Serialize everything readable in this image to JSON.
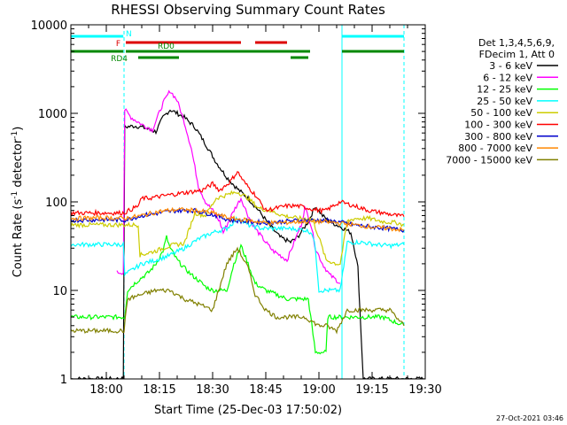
{
  "chart_data": {
    "type": "line",
    "title": "RHESSI Observing Summary Count Rates",
    "xlabel": "Start Time (25-Dec-03 17:50:02)",
    "ylabel_main": "Count Rate (s",
    "ylabel_sup1": "-1",
    "ylabel_mid": " detector",
    "ylabel_sup2": "-1",
    "ylabel_end": ")",
    "x_start_minutes": 0,
    "x_end_minutes": 100,
    "x_tick_minutes": [
      10,
      25,
      40,
      55,
      70,
      85,
      100
    ],
    "x_tick_labels": [
      "18:00",
      "18:15",
      "18:30",
      "18:45",
      "19:00",
      "19:15",
      "19:30"
    ],
    "y_scale": "log",
    "ylim": [
      1,
      10000
    ],
    "y_ticks": [
      1,
      10,
      100,
      1000,
      10000
    ],
    "y_tick_labels": [
      "1",
      "10",
      "100",
      "1000",
      "10000"
    ],
    "grid": false,
    "legend_position": "top-right",
    "legend_header": [
      "Det 1,3,4,5,6,9,",
      "FDecim 1, Att 0"
    ],
    "series": [
      {
        "name": "3 - 6 keV",
        "color": "#000000",
        "points": [
          [
            0,
            1
          ],
          [
            14.8,
            1
          ],
          [
            15.2,
            700
          ],
          [
            18,
            720
          ],
          [
            20,
            700
          ],
          [
            22,
            660
          ],
          [
            24,
            620
          ],
          [
            26,
            900
          ],
          [
            28,
            1100
          ],
          [
            30,
            1000
          ],
          [
            32,
            900
          ],
          [
            35,
            700
          ],
          [
            38,
            450
          ],
          [
            41,
            280
          ],
          [
            44,
            190
          ],
          [
            47,
            140
          ],
          [
            50,
            110
          ],
          [
            53,
            80
          ],
          [
            56,
            55
          ],
          [
            59,
            40
          ],
          [
            62,
            35
          ],
          [
            64,
            40
          ],
          [
            67,
            60
          ],
          [
            69,
            90
          ],
          [
            71,
            70
          ],
          [
            73,
            60
          ],
          [
            75,
            55
          ],
          [
            77,
            50
          ],
          [
            79,
            45
          ],
          [
            80,
            30
          ],
          [
            81,
            18
          ],
          [
            82.5,
            1
          ],
          [
            100,
            1
          ]
        ]
      },
      {
        "name": "6 - 12 keV",
        "color": "#ff00ff",
        "points": [
          [
            13,
            16
          ],
          [
            14.8,
            16
          ],
          [
            15.2,
            1100
          ],
          [
            17,
            900
          ],
          [
            20,
            750
          ],
          [
            23,
            650
          ],
          [
            26,
            1300
          ],
          [
            28,
            1800
          ],
          [
            30,
            1400
          ],
          [
            32,
            800
          ],
          [
            34,
            400
          ],
          [
            36,
            150
          ],
          [
            38,
            100
          ],
          [
            40,
            80
          ],
          [
            42,
            60
          ],
          [
            43,
            45
          ],
          [
            46,
            80
          ],
          [
            48,
            110
          ],
          [
            50,
            70
          ],
          [
            52,
            50
          ],
          [
            55,
            35
          ],
          [
            57,
            28
          ],
          [
            59,
            25
          ],
          [
            61,
            22
          ],
          [
            63,
            35
          ],
          [
            65,
            55
          ],
          [
            66,
            85
          ],
          [
            67,
            70
          ],
          [
            68,
            50
          ],
          [
            69,
            30
          ],
          [
            71,
            20
          ],
          [
            73,
            15
          ],
          [
            75,
            13
          ],
          [
            76,
            12
          ]
        ]
      },
      {
        "name": "12 - 25 keV",
        "color": "#00ff00",
        "points": [
          [
            0,
            5
          ],
          [
            14,
            5
          ],
          [
            15.2,
            5
          ],
          [
            16,
            10
          ],
          [
            18,
            12
          ],
          [
            20,
            14
          ],
          [
            22,
            16
          ],
          [
            24,
            20
          ],
          [
            26,
            28
          ],
          [
            27,
            40
          ],
          [
            28,
            30
          ],
          [
            30,
            22
          ],
          [
            32,
            18
          ],
          [
            34,
            15
          ],
          [
            36,
            13
          ],
          [
            38,
            11
          ],
          [
            40,
            10
          ],
          [
            42,
            10
          ],
          [
            44,
            10
          ],
          [
            46,
            20
          ],
          [
            48,
            32
          ],
          [
            50,
            20
          ],
          [
            52,
            12
          ],
          [
            55,
            10
          ],
          [
            58,
            9
          ],
          [
            61,
            8
          ],
          [
            64,
            8
          ],
          [
            67,
            8
          ],
          [
            69,
            2
          ],
          [
            72,
            2
          ],
          [
            72.5,
            5
          ],
          [
            80,
            5
          ],
          [
            88,
            5
          ],
          [
            94,
            4
          ]
        ]
      },
      {
        "name": "25 - 50 keV",
        "color": "#00ffff",
        "points": [
          [
            0,
            33
          ],
          [
            14,
            33
          ],
          [
            14.8,
            33
          ],
          [
            15.2,
            15
          ],
          [
            20,
            20
          ],
          [
            24,
            22
          ],
          [
            28,
            25
          ],
          [
            32,
            30
          ],
          [
            36,
            38
          ],
          [
            40,
            45
          ],
          [
            44,
            50
          ],
          [
            47,
            65
          ],
          [
            50,
            55
          ],
          [
            54,
            50
          ],
          [
            58,
            50
          ],
          [
            62,
            50
          ],
          [
            66,
            48
          ],
          [
            68,
            45
          ],
          [
            69,
            30
          ],
          [
            70,
            10
          ],
          [
            75,
            10
          ],
          [
            76,
            10
          ],
          [
            78,
            35
          ],
          [
            82,
            35
          ],
          [
            86,
            33
          ],
          [
            90,
            32
          ],
          [
            94,
            33
          ]
        ]
      },
      {
        "name": "50 - 100 keV",
        "color": "#cccc00",
        "points": [
          [
            0,
            55
          ],
          [
            10,
            55
          ],
          [
            15,
            55
          ],
          [
            19,
            55
          ],
          [
            19.5,
            25
          ],
          [
            24,
            28
          ],
          [
            28,
            32
          ],
          [
            32,
            34
          ],
          [
            35,
            75
          ],
          [
            38,
            70
          ],
          [
            41,
            110
          ],
          [
            44,
            120
          ],
          [
            47,
            130
          ],
          [
            50,
            110
          ],
          [
            53,
            85
          ],
          [
            56,
            80
          ],
          [
            60,
            70
          ],
          [
            64,
            65
          ],
          [
            68,
            65
          ],
          [
            70,
            40
          ],
          [
            72,
            22
          ],
          [
            75,
            20
          ],
          [
            76,
            20
          ],
          [
            78,
            60
          ],
          [
            80,
            65
          ],
          [
            84,
            65
          ],
          [
            88,
            60
          ],
          [
            92,
            58
          ],
          [
            94,
            55
          ]
        ]
      },
      {
        "name": "100 - 300 keV",
        "color": "#ff0000",
        "points": [
          [
            0,
            75
          ],
          [
            14,
            75
          ],
          [
            15,
            75
          ],
          [
            19,
            90
          ],
          [
            20,
            110
          ],
          [
            22,
            110
          ],
          [
            25,
            115
          ],
          [
            28,
            120
          ],
          [
            31,
            125
          ],
          [
            34,
            130
          ],
          [
            37,
            135
          ],
          [
            40,
            160
          ],
          [
            42,
            135
          ],
          [
            45,
            170
          ],
          [
            47,
            220
          ],
          [
            49,
            165
          ],
          [
            52,
            120
          ],
          [
            55,
            80
          ],
          [
            58,
            85
          ],
          [
            61,
            90
          ],
          [
            64,
            90
          ],
          [
            67,
            85
          ],
          [
            70,
            80
          ],
          [
            72,
            80
          ],
          [
            74,
            90
          ],
          [
            76,
            100
          ],
          [
            80,
            90
          ],
          [
            84,
            80
          ],
          [
            88,
            75
          ],
          [
            92,
            70
          ],
          [
            94,
            68
          ]
        ]
      },
      {
        "name": "300 - 800 keV",
        "color": "#0000cc",
        "points": [
          [
            0,
            62
          ],
          [
            10,
            63
          ],
          [
            15,
            62
          ],
          [
            20,
            70
          ],
          [
            25,
            75
          ],
          [
            30,
            80
          ],
          [
            35,
            80
          ],
          [
            40,
            72
          ],
          [
            45,
            62
          ],
          [
            50,
            60
          ],
          [
            55,
            58
          ],
          [
            60,
            60
          ],
          [
            65,
            62
          ],
          [
            70,
            62
          ],
          [
            75,
            60
          ],
          [
            80,
            55
          ],
          [
            85,
            52
          ],
          [
            90,
            50
          ],
          [
            94,
            48
          ]
        ]
      },
      {
        "name": "800 - 7000 keV",
        "color": "#ff8800",
        "points": [
          [
            0,
            65
          ],
          [
            10,
            66
          ],
          [
            15,
            65
          ],
          [
            20,
            70
          ],
          [
            25,
            78
          ],
          [
            30,
            82
          ],
          [
            35,
            80
          ],
          [
            40,
            75
          ],
          [
            45,
            65
          ],
          [
            50,
            62
          ],
          [
            55,
            58
          ],
          [
            60,
            58
          ],
          [
            65,
            60
          ],
          [
            70,
            60
          ],
          [
            75,
            58
          ],
          [
            80,
            55
          ],
          [
            85,
            52
          ],
          [
            90,
            50
          ],
          [
            94,
            48
          ]
        ]
      },
      {
        "name": "7000 - 15000 keV",
        "color": "#808000",
        "points": [
          [
            0,
            3.5
          ],
          [
            14,
            3.5
          ],
          [
            15,
            3.5
          ],
          [
            16,
            8
          ],
          [
            20,
            9
          ],
          [
            24,
            10
          ],
          [
            28,
            10
          ],
          [
            32,
            8
          ],
          [
            36,
            7
          ],
          [
            40,
            6
          ],
          [
            44,
            20
          ],
          [
            47,
            30
          ],
          [
            50,
            18
          ],
          [
            52,
            9
          ],
          [
            55,
            6
          ],
          [
            58,
            5
          ],
          [
            62,
            5
          ],
          [
            66,
            5
          ],
          [
            70,
            4
          ],
          [
            72,
            4
          ],
          [
            75,
            3.5
          ],
          [
            78,
            6
          ],
          [
            84,
            6
          ],
          [
            90,
            6
          ],
          [
            94,
            4
          ]
        ]
      }
    ],
    "bars": [
      {
        "label": "N",
        "color": "#00ffff",
        "level": 0,
        "segments": [
          [
            0,
            14.8
          ],
          [
            76.5,
            94
          ]
        ]
      },
      {
        "label": "F",
        "color": "#dd0000",
        "level": 1,
        "segments": [
          [
            15.5,
            48
          ],
          [
            52,
            61
          ]
        ]
      },
      {
        "label": "RD0",
        "color": "#008800",
        "level": 2,
        "segments": [
          [
            0,
            14.8
          ],
          [
            15.5,
            67.5
          ],
          [
            76.5,
            94
          ]
        ]
      },
      {
        "label": "RD4",
        "color": "#008800",
        "level": 3,
        "segments": [
          [
            19,
            30.5
          ],
          [
            62,
            67
          ]
        ]
      }
    ],
    "vertical_markers": [
      {
        "minutes": 0,
        "color": "#00ffff",
        "style": "solid"
      },
      {
        "minutes": 15,
        "color": "#00ffff",
        "style": "dashed"
      },
      {
        "minutes": 76.5,
        "color": "#00ffff",
        "style": "solid"
      },
      {
        "minutes": 94,
        "color": "#00ffff",
        "style": "dashed"
      }
    ]
  },
  "footer_date": "27-Oct-2021 03:46"
}
